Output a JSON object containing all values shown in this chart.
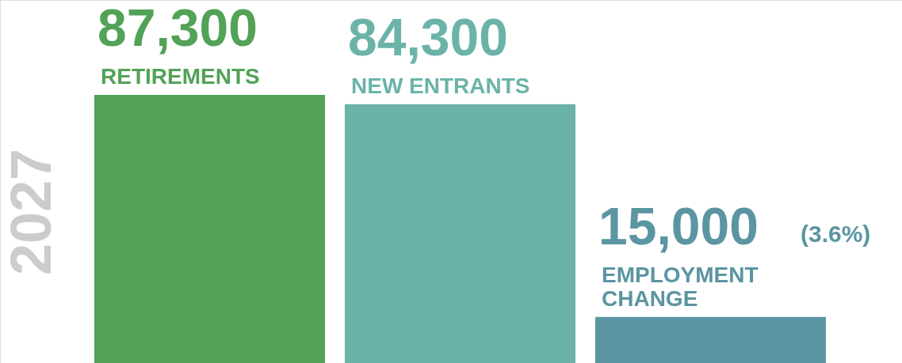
{
  "chart_data": {
    "type": "bar",
    "title": "2027",
    "categories": [
      "RETIREMENTS",
      "NEW ENTRANTS",
      "EMPLOYMENT CHANGE"
    ],
    "values": [
      87300,
      84300,
      15000
    ],
    "colors": [
      "#52a257",
      "#6bb3a8",
      "#5b95a2"
    ],
    "value_labels": [
      "87,300",
      "84,300",
      "15,000"
    ],
    "annotations": [
      "(3.6%)"
    ],
    "grid": false
  }
}
